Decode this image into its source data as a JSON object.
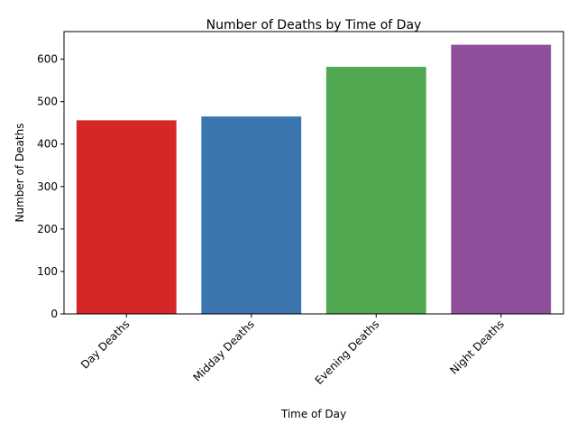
{
  "chart_data": {
    "type": "bar",
    "title": "Number of Deaths by Time of Day",
    "xlabel": "Time of Day",
    "ylabel": "Number of Deaths",
    "categories": [
      "Day Deaths",
      "Midday Deaths",
      "Evening Deaths",
      "Night Deaths"
    ],
    "values": [
      456,
      465,
      582,
      634
    ],
    "colors": [
      "#d62728",
      "#3a75b0",
      "#4fa84f",
      "#8f4f9b"
    ],
    "ylim": [
      0,
      665
    ],
    "yticks": [
      0,
      100,
      200,
      300,
      400,
      500,
      600
    ],
    "grid": false,
    "legend": "none"
  }
}
